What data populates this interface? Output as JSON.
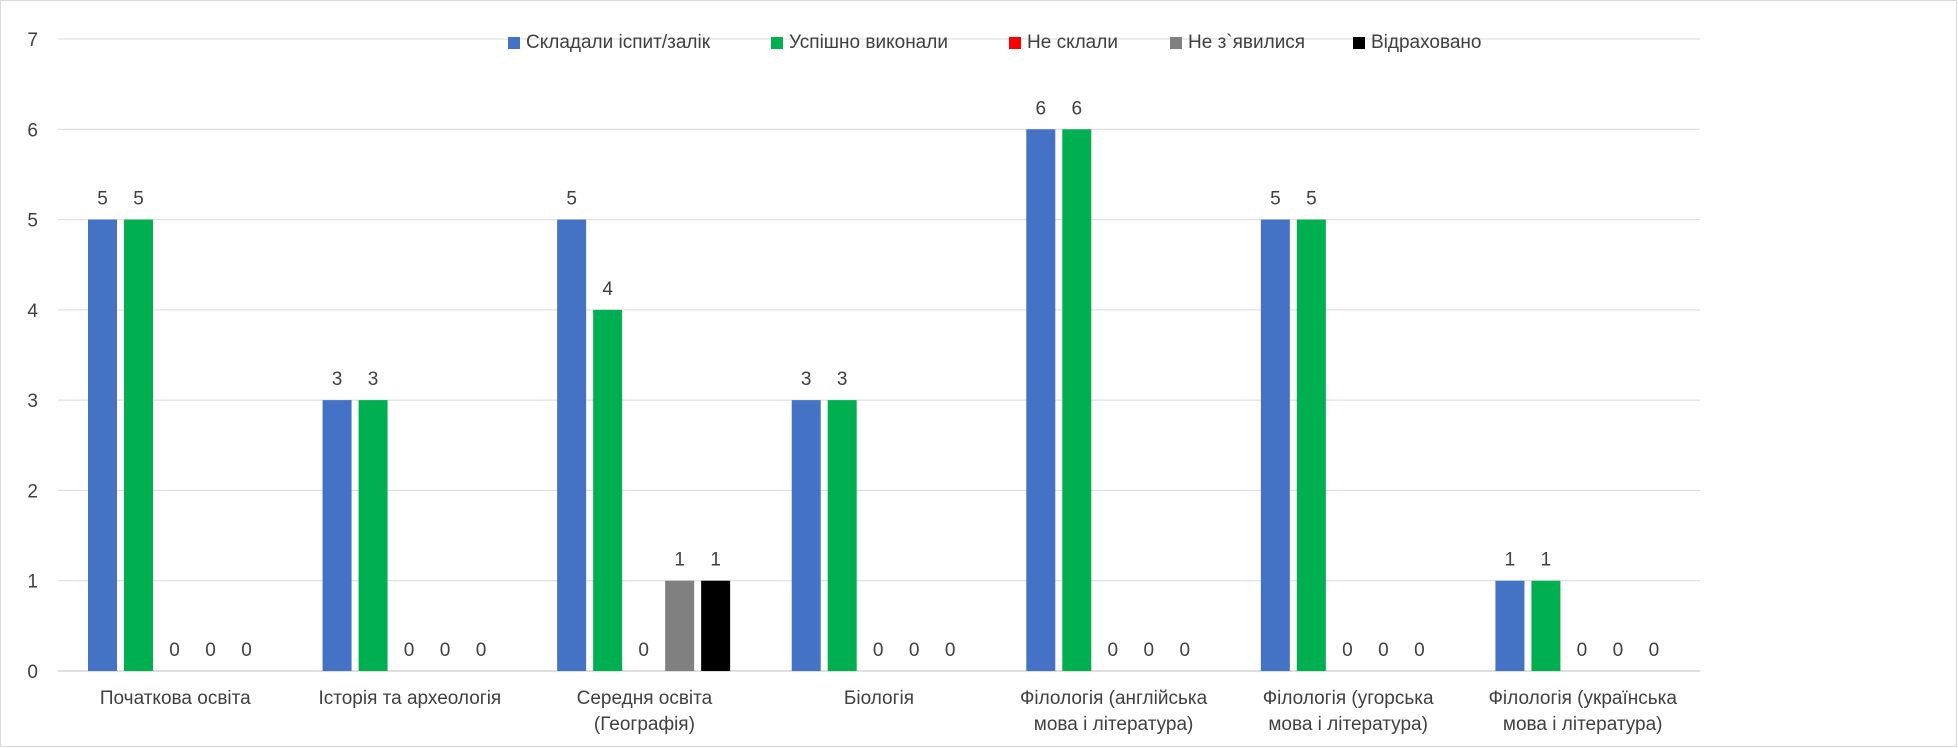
{
  "chart_data": {
    "type": "bar",
    "title": "",
    "xlabel": "",
    "ylabel": "",
    "ylim": [
      0,
      7
    ],
    "yticks": [
      0,
      1,
      2,
      3,
      4,
      5,
      6,
      7
    ],
    "grid": true,
    "legend_position": "top",
    "categories": [
      [
        "Початкова освіта"
      ],
      [
        "Історія та археологія"
      ],
      [
        "Середня освіта",
        "(Географія)"
      ],
      [
        "Біологія"
      ],
      [
        "Філологія (англійська",
        "мова і література)"
      ],
      [
        "Філологія (угорська",
        "мова і література)"
      ],
      [
        "Філологія (українська",
        "мова і література)"
      ]
    ],
    "series": [
      {
        "name": "Складали іспит/залік",
        "color": "#4472c4",
        "values": [
          5,
          3,
          5,
          3,
          6,
          5,
          1
        ]
      },
      {
        "name": "Успішно виконали",
        "color": "#00b050",
        "values": [
          5,
          3,
          4,
          3,
          6,
          5,
          1
        ]
      },
      {
        "name": "Не склали",
        "color": "#ff0000",
        "values": [
          0,
          0,
          0,
          0,
          0,
          0,
          0
        ]
      },
      {
        "name": "Не з`явилися",
        "color": "#808080",
        "values": [
          0,
          0,
          1,
          0,
          0,
          0,
          0
        ]
      },
      {
        "name": "Відраховано",
        "color": "#000000",
        "values": [
          0,
          0,
          1,
          0,
          0,
          0,
          0
        ]
      }
    ]
  }
}
